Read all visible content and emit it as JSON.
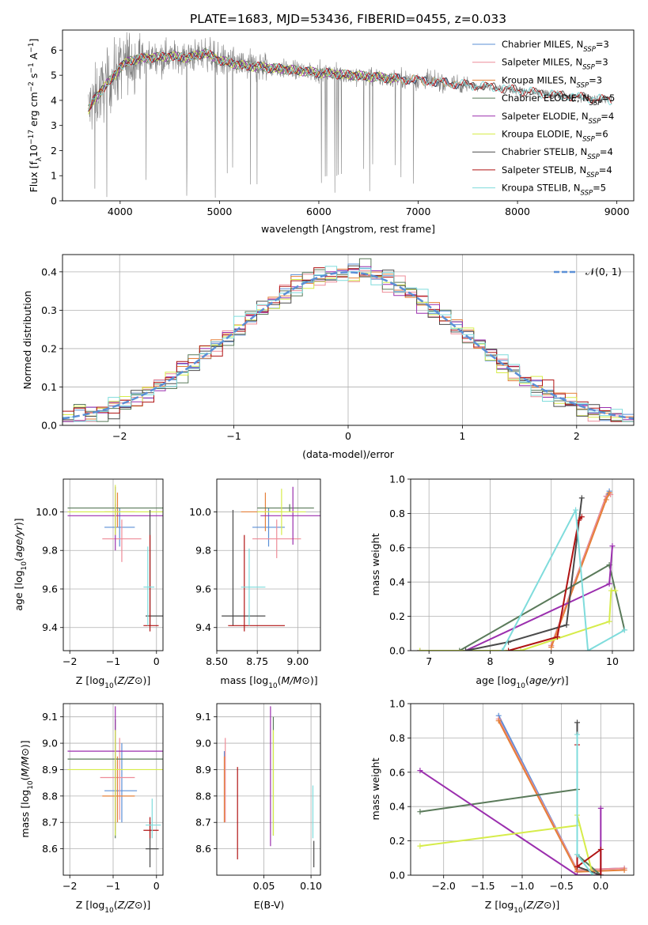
{
  "figure": {
    "title": "PLATE=1683, MJD=53436, FIBERID=0455, z=0.033"
  },
  "colors": {
    "Chabrier MILES": "#5b8fd6",
    "Salpeter MILES": "#ee8c98",
    "Kroupa MILES": "#e5803a",
    "Chabrier ELODIE": "#5a7a5a",
    "Salpeter ELODIE": "#9b2fae",
    "Kroupa ELODIE": "#d6ec4a",
    "Chabrier STELIB": "#4a4a4a",
    "Salpeter STELIB": "#b01313",
    "Kroupa STELIB": "#7fdcdc",
    "data": "#808080",
    "normal_curve": "#5b8fd6"
  },
  "chart_data": [
    {
      "id": "spectrum",
      "type": "line",
      "xlabel": "wavelength [Angstrom, rest frame]",
      "ylabel_parts": [
        "Flux [f",
        "λ",
        "10",
        "−17",
        " erg cm",
        "−2",
        " s",
        "−1",
        " A",
        "−1",
        "]"
      ],
      "xlim": [
        3420,
        9170
      ],
      "ylim": [
        0,
        6.8
      ],
      "xticks": [
        4000,
        5000,
        6000,
        7000,
        8000,
        9000
      ],
      "yticks": [
        0,
        1,
        2,
        3,
        4,
        5,
        6
      ],
      "legend": [
        {
          "name": "Chabrier MILES",
          "nssp": "3"
        },
        {
          "name": "Salpeter MILES",
          "nssp": "3"
        },
        {
          "name": "Kroupa MILES",
          "nssp": "3"
        },
        {
          "name": "Chabrier ELODIE",
          "nssp": "5"
        },
        {
          "name": "Salpeter ELODIE",
          "nssp": "4"
        },
        {
          "name": "Kroupa ELODIE",
          "nssp": "6"
        },
        {
          "name": "Chabrier STELIB",
          "nssp": "4"
        },
        {
          "name": "Salpeter STELIB",
          "nssp": "4"
        },
        {
          "name": "Kroupa STELIB",
          "nssp": "5"
        }
      ],
      "legend_nssp_prefix": "N",
      "legend_nssp_sub": "SSP",
      "continuum": [
        [
          3680,
          3.6
        ],
        [
          3750,
          4.1
        ],
        [
          3900,
          4.8
        ],
        [
          4000,
          5.3
        ],
        [
          4100,
          5.6
        ],
        [
          4300,
          5.7
        ],
        [
          4500,
          5.75
        ],
        [
          4700,
          5.7
        ],
        [
          4850,
          5.9
        ],
        [
          5000,
          5.6
        ],
        [
          5200,
          5.4
        ],
        [
          5500,
          5.3
        ],
        [
          6000,
          5.1
        ],
        [
          6500,
          4.95
        ],
        [
          7000,
          4.8
        ],
        [
          7400,
          4.65
        ],
        [
          7700,
          4.55
        ],
        [
          8000,
          4.4
        ],
        [
          8300,
          4.25
        ],
        [
          8700,
          4.1
        ],
        [
          8950,
          4.0
        ]
      ]
    },
    {
      "id": "residuals",
      "type": "histogram",
      "xlabel": "(data-model)/error",
      "ylabel": "Normed distribution",
      "xlim": [
        -2.5,
        2.5
      ],
      "ylim": [
        0,
        0.445
      ],
      "xticks": [
        -2,
        -1,
        0,
        1,
        2
      ],
      "yticks": [
        0.0,
        0.1,
        0.2,
        0.3,
        0.4
      ],
      "legend": [
        "𝒩(0, 1)"
      ],
      "bin_width": 0.1
    },
    {
      "id": "age_vs_Z",
      "type": "errorbar",
      "xlabel": "Z [log10(Z/Z⊙)]",
      "ylabel": "age  [log10(age/yr)]",
      "xlim": [
        -2.15,
        0.15
      ],
      "ylim": [
        9.28,
        10.17
      ],
      "xticks": [
        -2,
        -1,
        0
      ],
      "yticks": [
        9.4,
        9.6,
        9.8,
        10.0
      ],
      "series": [
        {
          "name": "Chabrier MILES",
          "x": -0.85,
          "xerr": [
            0.35,
            0.35
          ],
          "y": 9.92,
          "yerr": [
            0.1,
            0.1
          ]
        },
        {
          "name": "Salpeter MILES",
          "x": -0.8,
          "xerr": [
            0.45,
            0.45
          ],
          "y": 9.86,
          "yerr": [
            0.12,
            0.1
          ]
        },
        {
          "name": "Kroupa MILES",
          "x": -0.9,
          "xerr": [
            0.3,
            0.4
          ],
          "y": 10.0,
          "yerr": [
            0.08,
            0.1
          ]
        },
        {
          "name": "Chabrier ELODIE",
          "x": -0.95,
          "xerr": [
            1.1,
            1.1
          ],
          "y": 10.02,
          "yerr": [
            0.02,
            0.02
          ]
        },
        {
          "name": "Salpeter ELODIE",
          "x": -0.95,
          "xerr": [
            1.1,
            1.2
          ],
          "y": 9.98,
          "yerr": [
            0.18,
            0.15
          ]
        },
        {
          "name": "Kroupa ELODIE",
          "x": -0.95,
          "xerr": [
            1.1,
            1.1
          ],
          "y": 10.0,
          "yerr": [
            0.12,
            0.14
          ]
        },
        {
          "name": "Chabrier STELIB",
          "x": -0.15,
          "xerr": [
            0.1,
            0.3
          ],
          "y": 9.46,
          "yerr": [
            0.05,
            0.55
          ]
        },
        {
          "name": "Salpeter STELIB",
          "x": -0.15,
          "xerr": [
            0.15,
            0.2
          ],
          "y": 9.41,
          "yerr": [
            0.03,
            0.47
          ]
        },
        {
          "name": "Kroupa STELIB",
          "x": -0.2,
          "xerr": [
            0.1,
            0.15
          ],
          "y": 9.61,
          "yerr": [
            0.2,
            0.21
          ]
        }
      ]
    },
    {
      "id": "age_vs_mass",
      "type": "errorbar",
      "xlabel": "mass [log10(M/M⊙)]",
      "ylabel": "",
      "xlim": [
        8.5,
        9.14
      ],
      "ylim": [
        9.28,
        10.17
      ],
      "xticks": [
        8.5,
        8.75,
        9.0
      ],
      "yticks": [
        9.4,
        9.6,
        9.8,
        10.0
      ],
      "series": [
        {
          "name": "Chabrier MILES",
          "x": 8.82,
          "xerr": [
            0.1,
            0.1
          ],
          "y": 9.92,
          "yerr": [
            0.1,
            0.1
          ]
        },
        {
          "name": "Salpeter MILES",
          "x": 8.87,
          "xerr": [
            0.15,
            0.15
          ],
          "y": 9.86,
          "yerr": [
            0.1,
            0.1
          ]
        },
        {
          "name": "Kroupa MILES",
          "x": 8.8,
          "xerr": [
            0.15,
            0.1
          ],
          "y": 10.0,
          "yerr": [
            0.1,
            0.1
          ]
        },
        {
          "name": "Chabrier ELODIE",
          "x": 8.95,
          "xerr": [
            0.2,
            0.15
          ],
          "y": 10.02,
          "yerr": [
            0.02,
            0.02
          ]
        },
        {
          "name": "Salpeter ELODIE",
          "x": 8.97,
          "xerr": [
            0.2,
            0.18
          ],
          "y": 9.98,
          "yerr": [
            0.15,
            0.15
          ]
        },
        {
          "name": "Kroupa ELODIE",
          "x": 8.9,
          "xerr": [
            0.15,
            0.15
          ],
          "y": 10.0,
          "yerr": [
            0.12,
            0.12
          ]
        },
        {
          "name": "Chabrier STELIB",
          "x": 8.6,
          "xerr": [
            0.07,
            0.2
          ],
          "y": 9.46,
          "yerr": [
            0.05,
            0.55
          ]
        },
        {
          "name": "Salpeter STELIB",
          "x": 8.67,
          "xerr": [
            0.1,
            0.25
          ],
          "y": 9.41,
          "yerr": [
            0.03,
            0.47
          ]
        },
        {
          "name": "Kroupa STELIB",
          "x": 8.7,
          "xerr": [
            0.05,
            0.1
          ],
          "y": 9.61,
          "yerr": [
            0.2,
            0.2
          ]
        }
      ]
    },
    {
      "id": "mass_weight_vs_age",
      "type": "line",
      "xlabel": "age  [log10(age/yr)]",
      "ylabel": "mass weight",
      "xlim": [
        6.7,
        10.35
      ],
      "ylim": [
        0,
        1.0
      ],
      "xticks": [
        7,
        8,
        9,
        10
      ],
      "yticks": [
        0.0,
        0.2,
        0.4,
        0.6,
        0.8,
        1.0
      ],
      "series": [
        {
          "name": "Chabrier MILES",
          "points": [
            [
              9.0,
              0.03
            ],
            [
              9.9,
              0.9
            ],
            [
              9.95,
              0.93
            ]
          ]
        },
        {
          "name": "Salpeter MILES",
          "points": [
            [
              9.0,
              0.03
            ],
            [
              9.9,
              0.9
            ],
            [
              9.97,
              0.91
            ]
          ]
        },
        {
          "name": "Kroupa MILES",
          "points": [
            [
              9.0,
              0.02
            ],
            [
              9.9,
              0.88
            ],
            [
              9.95,
              0.92
            ]
          ]
        },
        {
          "name": "Chabrier ELODIE",
          "points": [
            [
              6.85,
              0.0
            ],
            [
              7.5,
              0.0
            ],
            [
              9.95,
              0.5
            ],
            [
              10.2,
              0.12
            ]
          ]
        },
        {
          "name": "Salpeter ELODIE",
          "points": [
            [
              6.85,
              0.0
            ],
            [
              7.6,
              0.0
            ],
            [
              9.95,
              0.39
            ],
            [
              10.0,
              0.61
            ]
          ]
        },
        {
          "name": "Kroupa ELODIE",
          "points": [
            [
              6.85,
              0.0
            ],
            [
              8.5,
              0.0
            ],
            [
              9.95,
              0.17
            ],
            [
              9.98,
              0.35
            ],
            [
              10.05,
              0.35
            ]
          ]
        },
        {
          "name": "Chabrier STELIB",
          "points": [
            [
              7.6,
              0.0
            ],
            [
              8.3,
              0.05
            ],
            [
              9.25,
              0.15
            ],
            [
              9.5,
              0.89
            ]
          ]
        },
        {
          "name": "Salpeter STELIB",
          "points": [
            [
              8.3,
              0.0
            ],
            [
              9.1,
              0.08
            ],
            [
              9.45,
              0.76
            ],
            [
              9.5,
              0.78
            ]
          ]
        },
        {
          "name": "Kroupa STELIB",
          "points": [
            [
              8.2,
              0.0
            ],
            [
              9.4,
              0.82
            ],
            [
              9.6,
              0.0
            ],
            [
              10.2,
              0.12
            ]
          ]
        }
      ]
    },
    {
      "id": "mass_vs_Z",
      "type": "errorbar",
      "xlabel": "Z [log10(Z/Z⊙)]",
      "ylabel": "mass [log10(M/M⊙)]",
      "xlim": [
        -2.15,
        0.15
      ],
      "ylim": [
        8.5,
        9.15
      ],
      "xticks": [
        -2,
        -1,
        0
      ],
      "yticks": [
        8.6,
        8.7,
        8.8,
        8.9,
        9.0,
        9.1
      ],
      "series": [
        {
          "name": "Chabrier MILES",
          "x": -0.8,
          "xerr": [
            0.4,
            0.35
          ],
          "y": 8.82,
          "yerr": [
            0.12,
            0.18
          ]
        },
        {
          "name": "Salpeter MILES",
          "x": -0.85,
          "xerr": [
            0.45,
            0.35
          ],
          "y": 8.87,
          "yerr": [
            0.16,
            0.15
          ]
        },
        {
          "name": "Kroupa MILES",
          "x": -0.9,
          "xerr": [
            0.35,
            0.4
          ],
          "y": 8.8,
          "yerr": [
            0.1,
            0.15
          ]
        },
        {
          "name": "Chabrier ELODIE",
          "x": -0.95,
          "xerr": [
            1.1,
            1.1
          ],
          "y": 8.94,
          "yerr": [
            0.3,
            0.15
          ]
        },
        {
          "name": "Salpeter ELODIE",
          "x": -0.95,
          "xerr": [
            1.1,
            1.1
          ],
          "y": 8.97,
          "yerr": [
            0.3,
            0.17
          ]
        },
        {
          "name": "Kroupa ELODIE",
          "x": -0.95,
          "xerr": [
            1.1,
            1.1
          ],
          "y": 8.9,
          "yerr": [
            0.25,
            0.15
          ]
        },
        {
          "name": "Chabrier STELIB",
          "x": -0.15,
          "xerr": [
            0.1,
            0.2
          ],
          "y": 8.6,
          "yerr": [
            0.07,
            0.1
          ]
        },
        {
          "name": "Salpeter STELIB",
          "x": -0.15,
          "xerr": [
            0.15,
            0.2
          ],
          "y": 8.67,
          "yerr": [
            0.03,
            0.05
          ]
        },
        {
          "name": "Kroupa STELIB",
          "x": -0.1,
          "xerr": [
            0.15,
            0.2
          ],
          "y": 8.69,
          "yerr": [
            0.05,
            0.1
          ]
        }
      ]
    },
    {
      "id": "mass_vs_ebv",
      "type": "errorbar",
      "xlabel": "E(B-V)",
      "ylabel": "",
      "xlim": [
        0.0,
        0.11
      ],
      "ylim": [
        8.5,
        9.15
      ],
      "xticks": [
        0.05,
        0.1
      ],
      "yticks": [
        8.6,
        8.7,
        8.8,
        8.9,
        9.0,
        9.1
      ],
      "series": [
        {
          "name": "Chabrier MILES",
          "x": 0.008,
          "y": 8.82,
          "yerr": [
            0.12,
            0.15
          ]
        },
        {
          "name": "Salpeter MILES",
          "x": 0.009,
          "y": 8.87,
          "yerr": [
            0.17,
            0.15
          ]
        },
        {
          "name": "Kroupa MILES",
          "x": 0.008,
          "y": 8.8,
          "yerr": [
            0.1,
            0.15
          ]
        },
        {
          "name": "Chabrier ELODIE",
          "x": 0.06,
          "y": 8.95,
          "yerr": [
            0.3,
            0.15
          ]
        },
        {
          "name": "Salpeter ELODIE",
          "x": 0.057,
          "y": 8.97,
          "yerr": [
            0.36,
            0.17
          ]
        },
        {
          "name": "Kroupa ELODIE",
          "x": 0.06,
          "y": 8.9,
          "yerr": [
            0.25,
            0.15
          ]
        },
        {
          "name": "Chabrier STELIB",
          "x": 0.103,
          "y": 8.6,
          "yerr": [
            0.07,
            0.03
          ]
        },
        {
          "name": "Salpeter STELIB",
          "x": 0.022,
          "y": 8.73,
          "yerr": [
            0.17,
            0.18
          ]
        },
        {
          "name": "Kroupa STELIB",
          "x": 0.102,
          "y": 8.7,
          "yerr": [
            0.06,
            0.14
          ]
        }
      ]
    },
    {
      "id": "mass_weight_vs_Z",
      "type": "line",
      "xlabel": "Z [log10(Z/Z⊙)]",
      "ylabel": "mass weight",
      "xlim": [
        -2.42,
        0.42
      ],
      "ylim": [
        0,
        1.0
      ],
      "xticks": [
        -2.0,
        -1.5,
        -1.0,
        -0.5,
        0.0
      ],
      "yticks": [
        0.0,
        0.2,
        0.4,
        0.6,
        0.8,
        1.0
      ],
      "series": [
        {
          "name": "Chabrier MILES",
          "points": [
            [
              -1.3,
              0.93
            ],
            [
              -0.3,
              0.03
            ],
            [
              0.3,
              0.04
            ]
          ]
        },
        {
          "name": "Salpeter MILES",
          "points": [
            [
              -1.3,
              0.91
            ],
            [
              -0.3,
              0.03
            ],
            [
              0.3,
              0.04
            ]
          ]
        },
        {
          "name": "Kroupa MILES",
          "points": [
            [
              -1.3,
              0.9
            ],
            [
              -0.3,
              0.02
            ],
            [
              0.3,
              0.03
            ]
          ]
        },
        {
          "name": "Chabrier ELODIE",
          "points": [
            [
              -2.3,
              0.37
            ],
            [
              -0.3,
              0.5
            ],
            [
              -0.3,
              0.12
            ],
            [
              0.0,
              0.0
            ]
          ]
        },
        {
          "name": "Salpeter ELODIE",
          "points": [
            [
              -2.3,
              0.61
            ],
            [
              -0.3,
              0.0
            ],
            [
              0.0,
              0.0
            ],
            [
              0.0,
              0.39
            ]
          ]
        },
        {
          "name": "Kroupa ELODIE",
          "points": [
            [
              -2.3,
              0.17
            ],
            [
              -0.3,
              0.29
            ],
            [
              -0.3,
              0.35
            ],
            [
              -0.1,
              0.0
            ]
          ]
        },
        {
          "name": "Chabrier STELIB",
          "points": [
            [
              -0.3,
              0.89
            ],
            [
              -0.3,
              0.05
            ],
            [
              0.0,
              0.0
            ]
          ]
        },
        {
          "name": "Salpeter STELIB",
          "points": [
            [
              -0.3,
              0.76
            ],
            [
              -0.3,
              0.05
            ],
            [
              0.0,
              0.15
            ],
            [
              0.0,
              0.0
            ]
          ]
        },
        {
          "name": "Kroupa STELIB",
          "points": [
            [
              -0.3,
              0.82
            ],
            [
              -0.3,
              0.12
            ],
            [
              -0.1,
              0.0
            ]
          ]
        }
      ]
    }
  ]
}
